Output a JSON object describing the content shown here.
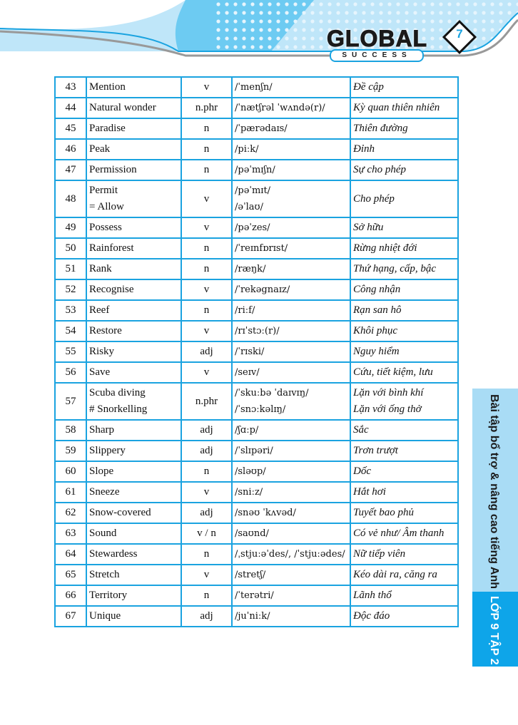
{
  "header": {
    "logo_text": "GLOBAL",
    "logo_subtext": "SUCCESS",
    "page_number": "7",
    "accent_color": "#1aa3e0"
  },
  "side_tab": {
    "series_title": "Bài tập bổ trợ & nâng cao tiếng Anh",
    "grade_label": "LỚP 9 TẬP 2"
  },
  "rows": [
    {
      "no": "43",
      "word": [
        "Mention"
      ],
      "pos": "v",
      "ipa": [
        "/ˈmenʃn/"
      ],
      "meaning": [
        "Đề cập"
      ]
    },
    {
      "no": "44",
      "word": [
        "Natural wonder"
      ],
      "pos": "n.phr",
      "ipa": [
        "/ˈnætʃrəl ˈwʌndə(r)/"
      ],
      "meaning": [
        "Kỳ quan thiên nhiên"
      ]
    },
    {
      "no": "45",
      "word": [
        "Paradise"
      ],
      "pos": "n",
      "ipa": [
        "/ˈpærədaɪs/"
      ],
      "meaning": [
        "Thiên đường"
      ]
    },
    {
      "no": "46",
      "word": [
        "Peak"
      ],
      "pos": "n",
      "ipa": [
        "/piːk/"
      ],
      "meaning": [
        "Đỉnh"
      ]
    },
    {
      "no": "47",
      "word": [
        "Permission"
      ],
      "pos": "n",
      "ipa": [
        "/pəˈmɪʃn/"
      ],
      "meaning": [
        "Sự cho phép"
      ]
    },
    {
      "no": "48",
      "word": [
        "Permit",
        "= Allow"
      ],
      "pos": "v",
      "ipa": [
        "/pəˈmɪt/",
        "/əˈlaʊ/"
      ],
      "meaning": [
        "Cho phép"
      ]
    },
    {
      "no": "49",
      "word": [
        "Possess"
      ],
      "pos": "v",
      "ipa": [
        "/pəˈzes/"
      ],
      "meaning": [
        "Sở hữu"
      ]
    },
    {
      "no": "50",
      "word": [
        "Rainforest"
      ],
      "pos": "n",
      "ipa": [
        "/ˈreɪnfɒrɪst/"
      ],
      "meaning": [
        "Rừng nhiệt đới"
      ]
    },
    {
      "no": "51",
      "word": [
        "Rank"
      ],
      "pos": "n",
      "ipa": [
        "/ræŋk/"
      ],
      "meaning": [
        "Thứ hạng, cấp, bậc"
      ]
    },
    {
      "no": "52",
      "word": [
        "Recognise"
      ],
      "pos": "v",
      "ipa": [
        "/ˈrekəgnaɪz/"
      ],
      "meaning": [
        "Công nhận"
      ]
    },
    {
      "no": "53",
      "word": [
        "Reef"
      ],
      "pos": "n",
      "ipa": [
        "/riːf/"
      ],
      "meaning": [
        "Rạn san hô"
      ]
    },
    {
      "no": "54",
      "word": [
        "Restore"
      ],
      "pos": "v",
      "ipa": [
        "/rɪˈstɔː(r)/"
      ],
      "meaning": [
        "Khôi phục"
      ]
    },
    {
      "no": "55",
      "word": [
        "Risky"
      ],
      "pos": "adj",
      "ipa": [
        "/ˈrɪski/"
      ],
      "meaning": [
        "Nguy hiểm"
      ]
    },
    {
      "no": "56",
      "word": [
        "Save"
      ],
      "pos": "v",
      "ipa": [
        "/seɪv/"
      ],
      "meaning": [
        "Cứu, tiết kiệm, lưu"
      ]
    },
    {
      "no": "57",
      "word": [
        "Scuba diving",
        "# Snorkelling"
      ],
      "pos": "n.phr",
      "ipa": [
        "/ˈskuːbə ˈdaɪvɪŋ/",
        "/ˈsnɔːkəlɪŋ/"
      ],
      "meaning": [
        "Lặn với bình khí",
        "Lặn với ống thở"
      ]
    },
    {
      "no": "58",
      "word": [
        "Sharp"
      ],
      "pos": "adj",
      "ipa": [
        "/ʃɑːp/"
      ],
      "meaning": [
        "Sắc"
      ]
    },
    {
      "no": "59",
      "word": [
        "Slippery"
      ],
      "pos": "adj",
      "ipa": [
        "/ˈslɪpəri/"
      ],
      "meaning": [
        "Trơn trượt"
      ]
    },
    {
      "no": "60",
      "word": [
        "Slope"
      ],
      "pos": "n",
      "ipa": [
        "/sləʊp/"
      ],
      "meaning": [
        "Dốc"
      ]
    },
    {
      "no": "61",
      "word": [
        "Sneeze"
      ],
      "pos": "v",
      "ipa": [
        "/sniːz/"
      ],
      "meaning": [
        "Hắt hơi"
      ]
    },
    {
      "no": "62",
      "word": [
        "Snow-covered"
      ],
      "pos": "adj",
      "ipa": [
        "/snəʊ ˈkʌvəd/"
      ],
      "meaning": [
        "Tuyết bao phủ"
      ]
    },
    {
      "no": "63",
      "word": [
        "Sound"
      ],
      "pos": "v / n",
      "ipa": [
        "/saʊnd/"
      ],
      "meaning": [
        "Có vẻ như/ Âm thanh"
      ]
    },
    {
      "no": "64",
      "word": [
        "Stewardess"
      ],
      "pos": "n",
      "ipa": [
        "/ˌstjuːəˈdes/, /ˈstjuːədes/"
      ],
      "meaning": [
        "Nữ tiếp viên"
      ]
    },
    {
      "no": "65",
      "word": [
        "Stretch"
      ],
      "pos": "v",
      "ipa": [
        "/stretʃ/"
      ],
      "meaning": [
        "Kéo dài ra, căng ra"
      ]
    },
    {
      "no": "66",
      "word": [
        "Territory"
      ],
      "pos": "n",
      "ipa": [
        "/ˈterətri/"
      ],
      "meaning": [
        "Lãnh thổ"
      ]
    },
    {
      "no": "67",
      "word": [
        "Unique"
      ],
      "pos": "adj",
      "ipa": [
        "/juˈniːk/"
      ],
      "meaning": [
        "Độc đáo"
      ]
    }
  ]
}
